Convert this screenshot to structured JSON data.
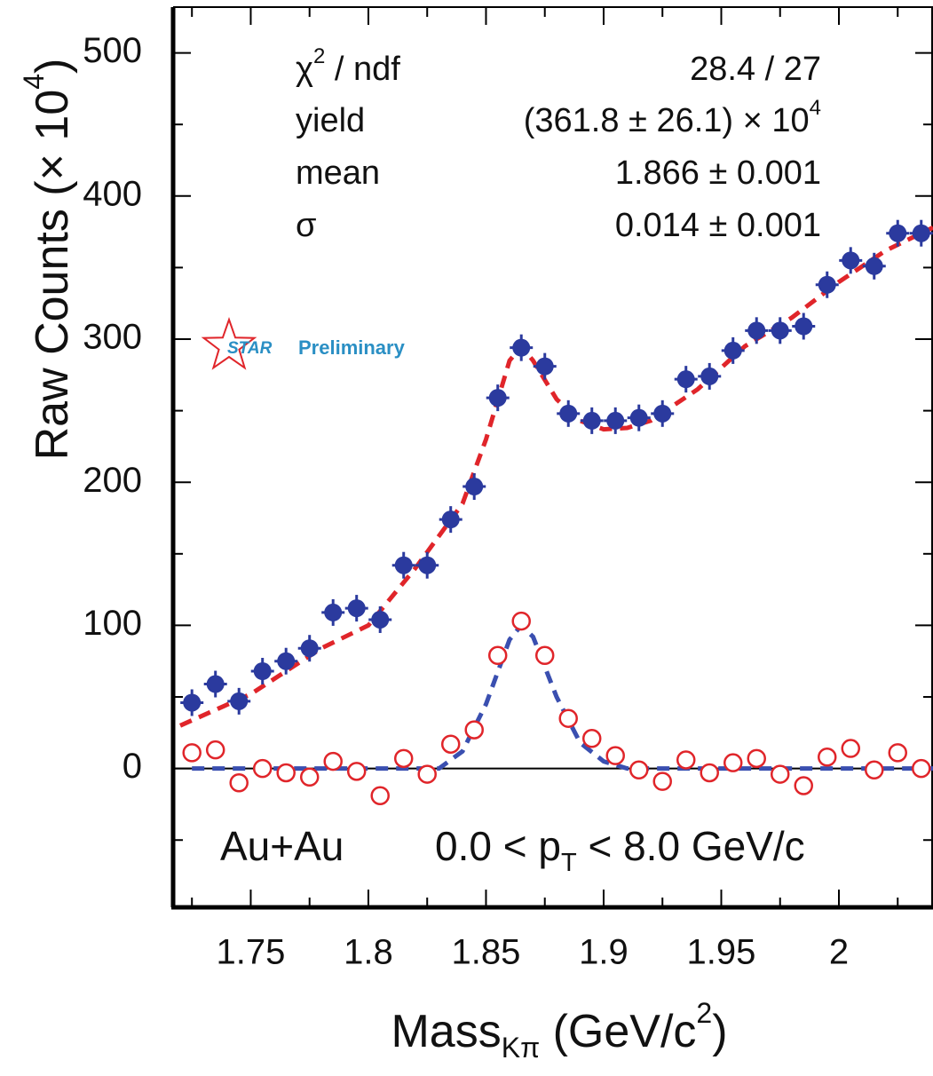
{
  "chart_data": {
    "type": "scatter",
    "y_label_parts": [
      "Raw Counts (× 10",
      "4",
      ")"
    ],
    "x_label_parts": [
      "Mass",
      "Kπ",
      " (GeV/c",
      "2",
      ")"
    ],
    "stats": [
      {
        "label": [
          "χ",
          "2",
          " / ndf"
        ],
        "value": [
          "28.4 / 27"
        ]
      },
      {
        "label": [
          "yield"
        ],
        "value": [
          "(361.8 ± 26.1) × 10",
          "4"
        ]
      },
      {
        "label": [
          "mean"
        ],
        "value": [
          "1.866 ± 0.001"
        ]
      },
      {
        "label": [
          "σ"
        ],
        "value": [
          "0.014 ± 0.001"
        ]
      }
    ],
    "logo": {
      "star_text": "STAR",
      "text": "Preliminary",
      "star_color": "#e0252a",
      "text_color": "#2a8fc4"
    },
    "system": "Au+Au",
    "pt_range_parts": [
      "0.0 < p",
      "T",
      " < 8.0 GeV/c"
    ],
    "xlim": [
      1.717,
      2.04
    ],
    "ylim": [
      -97,
      532
    ],
    "xticks": [
      1.75,
      1.8,
      1.85,
      1.9,
      1.95,
      2
    ],
    "xminorticks": [
      1.725,
      1.775,
      1.825,
      1.875,
      1.925,
      1.975,
      2.025
    ],
    "yticks": [
      0,
      100,
      200,
      300,
      400,
      500
    ],
    "yminorticks": [
      -50,
      50,
      150,
      250,
      350,
      450
    ],
    "x": [
      1.725,
      1.735,
      1.745,
      1.755,
      1.765,
      1.775,
      1.785,
      1.795,
      1.805,
      1.815,
      1.825,
      1.835,
      1.845,
      1.855,
      1.865,
      1.875,
      1.885,
      1.895,
      1.905,
      1.915,
      1.925,
      1.935,
      1.945,
      1.955,
      1.965,
      1.975,
      1.985,
      1.995,
      2.005,
      2.015,
      2.025,
      2.035
    ],
    "series": [
      {
        "color": "#2b3a9e",
        "marker": "filled",
        "values": [
          46,
          59,
          47,
          68,
          75,
          84,
          109,
          112,
          104,
          142,
          142,
          174,
          197,
          259,
          294,
          281,
          248,
          243,
          243,
          245,
          248,
          272,
          274,
          292,
          306,
          306,
          309,
          338,
          355,
          351,
          374,
          374
        ]
      },
      {
        "color": "#e0252a",
        "marker": "open",
        "values": [
          11,
          13,
          -10,
          0,
          -3,
          -6,
          5,
          -2,
          -19,
          7,
          -4,
          17,
          27,
          79,
          103,
          79,
          35,
          21,
          9,
          -1,
          -9,
          6,
          -3,
          4,
          7,
          -4,
          -12,
          8,
          14,
          -1,
          11,
          0
        ]
      }
    ],
    "fits": [
      {
        "color": "#e0252a",
        "x": [
          1.72,
          1.75,
          1.78,
          1.8,
          1.82,
          1.84,
          1.85,
          1.86,
          1.865,
          1.87,
          1.88,
          1.89,
          1.9,
          1.91,
          1.92,
          1.94,
          1.96,
          1.98,
          2.0,
          2.02,
          2.04
        ],
        "values": [
          30,
          52,
          84,
          100,
          140,
          185,
          230,
          285,
          295,
          285,
          258,
          243,
          237,
          238,
          243,
          265,
          295,
          315,
          340,
          362,
          378
        ]
      },
      {
        "color": "#3a4fb0",
        "x": [
          1.725,
          1.83,
          1.84,
          1.85,
          1.86,
          1.865,
          1.87,
          1.88,
          1.89,
          1.9,
          1.91,
          2.04
        ],
        "values": [
          0,
          0,
          12,
          45,
          90,
          100,
          92,
          50,
          18,
          5,
          0,
          0
        ]
      }
    ]
  }
}
